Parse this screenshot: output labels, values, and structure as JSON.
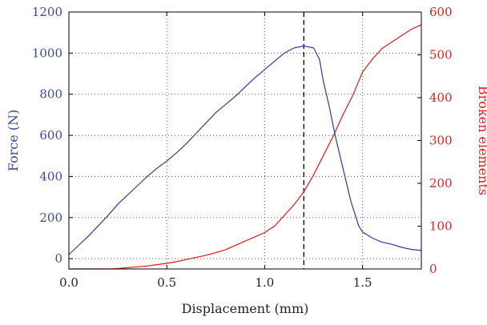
{
  "chart_data": {
    "type": "line",
    "xlabel": "Displacement (mm)",
    "ylabel_left": "Force (N)",
    "ylabel_right": "Broken elements",
    "xlim": [
      0.0,
      1.8
    ],
    "ylim_left": [
      -50,
      1200
    ],
    "ylim_right": [
      0,
      600
    ],
    "x_ticks": [
      "0.0",
      "0.5",
      "1.0",
      "1.5"
    ],
    "x_tick_values": [
      0.0,
      0.5,
      1.0,
      1.5
    ],
    "y_left_ticks": [
      "0",
      "200",
      "400",
      "600",
      "800",
      "1000",
      "1200"
    ],
    "y_left_tick_values": [
      0,
      200,
      400,
      600,
      800,
      1000,
      1200
    ],
    "y_right_ticks": [
      "0",
      "100",
      "200",
      "300",
      "400",
      "500",
      "600"
    ],
    "y_right_tick_values": [
      0,
      100,
      200,
      300,
      400,
      500,
      600
    ],
    "grid": "dotted",
    "vertical_marker_x": 1.2,
    "colors": {
      "left_axis": "#3a4a9a",
      "right_axis": "#e02020",
      "force": "#2b3d9a",
      "broken": "#e01818"
    },
    "series": [
      {
        "axis": "left",
        "x": [
          0.0,
          0.05,
          0.1,
          0.15,
          0.2,
          0.25,
          0.3,
          0.35,
          0.4,
          0.45,
          0.5,
          0.55,
          0.6,
          0.65,
          0.7,
          0.75,
          0.8,
          0.85,
          0.9,
          0.95,
          1.0,
          1.05,
          1.1,
          1.15,
          1.2,
          1.25,
          1.28,
          1.3,
          1.33,
          1.36,
          1.4,
          1.44,
          1.48,
          1.5,
          1.55,
          1.6,
          1.65,
          1.7,
          1.75,
          1.8
        ],
        "y": [
          20,
          65,
          110,
          160,
          210,
          265,
          310,
          355,
          400,
          440,
          475,
          515,
          560,
          610,
          660,
          710,
          750,
          790,
          835,
          880,
          920,
          960,
          1000,
          1025,
          1035,
          1025,
          970,
          860,
          740,
          600,
          440,
          280,
          160,
          130,
          100,
          80,
          70,
          55,
          45,
          40
        ]
      },
      {
        "axis": "right",
        "x": [
          0.0,
          0.1,
          0.2,
          0.25,
          0.3,
          0.35,
          0.4,
          0.45,
          0.5,
          0.55,
          0.6,
          0.65,
          0.7,
          0.75,
          0.8,
          0.85,
          0.9,
          0.95,
          1.0,
          1.05,
          1.1,
          1.15,
          1.2,
          1.25,
          1.3,
          1.35,
          1.4,
          1.45,
          1.5,
          1.55,
          1.6,
          1.65,
          1.7,
          1.75,
          1.8
        ],
        "y": [
          0,
          0,
          0,
          1,
          3,
          5,
          7,
          10,
          13,
          17,
          22,
          27,
          32,
          38,
          45,
          55,
          65,
          75,
          85,
          100,
          125,
          150,
          180,
          220,
          265,
          310,
          360,
          405,
          460,
          490,
          515,
          530,
          545,
          560,
          570
        ]
      }
    ]
  }
}
